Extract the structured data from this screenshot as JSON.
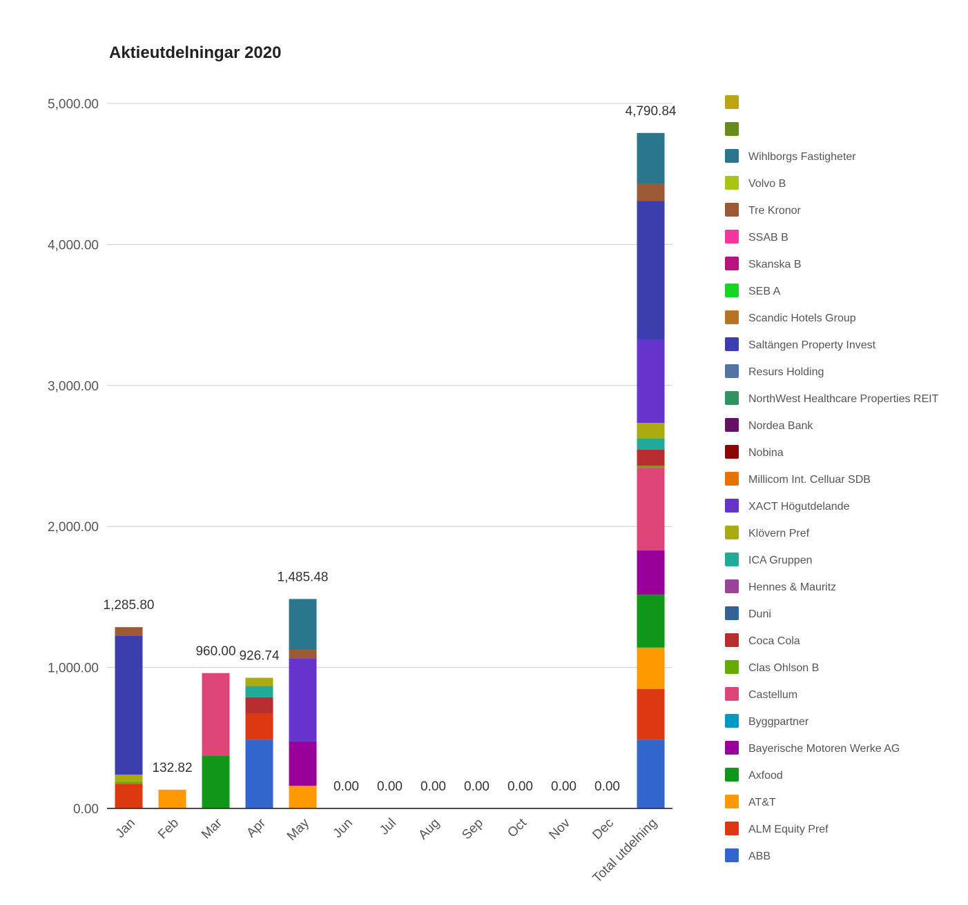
{
  "chart_data": {
    "type": "bar",
    "stacked": true,
    "title": "Aktieutdelningar 2020",
    "xlabel": "",
    "ylabel": "",
    "ylim": [
      0,
      5000
    ],
    "yticks": [
      "0.00",
      "1,000.00",
      "2,000.00",
      "3,000.00",
      "4,000.00",
      "5,000.00"
    ],
    "ytick_values": [
      0,
      1000,
      2000,
      3000,
      4000,
      5000
    ],
    "grid": true,
    "legend_position": "right",
    "categories": [
      "Jan",
      "Feb",
      "Mar",
      "Apr",
      "May",
      "Jun",
      "Jul",
      "Aug",
      "Sep",
      "Oct",
      "Nov",
      "Dec",
      "Total utdelning"
    ],
    "totals": [
      "1,285.80",
      "132.82",
      "960.00",
      "926.74",
      "1,485.48",
      "0.00",
      "0.00",
      "0.00",
      "0.00",
      "0.00",
      "0.00",
      "0.00",
      "4,790.84"
    ],
    "series": [
      {
        "name": "ABB",
        "color": "#3366cc",
        "values": [
          0,
          0,
          0,
          488,
          0,
          0,
          0,
          0,
          0,
          0,
          0,
          0,
          488
        ]
      },
      {
        "name": "ALM Equity Pref",
        "color": "#dc3912",
        "values": [
          175,
          0,
          0,
          185,
          0,
          0,
          0,
          0,
          0,
          0,
          0,
          0,
          360
        ]
      },
      {
        "name": "AT&T",
        "color": "#ff9900",
        "values": [
          0,
          132.82,
          0,
          0,
          160,
          0,
          0,
          0,
          0,
          0,
          0,
          0,
          292.82
        ]
      },
      {
        "name": "Axfood",
        "color": "#109618",
        "values": [
          0,
          0,
          375,
          0,
          0,
          0,
          0,
          0,
          0,
          0,
          0,
          0,
          375
        ]
      },
      {
        "name": "Bayerische Motoren Werke AG",
        "color": "#990099",
        "values": [
          0,
          0,
          0,
          0,
          315,
          0,
          0,
          0,
          0,
          0,
          0,
          0,
          315
        ]
      },
      {
        "name": "Byggpartner",
        "color": "#0099c6",
        "values": [
          0,
          0,
          0,
          0,
          0,
          0,
          0,
          0,
          0,
          0,
          0,
          0,
          0
        ]
      },
      {
        "name": "Castellum",
        "color": "#dd4477",
        "values": [
          0,
          0,
          585,
          0,
          0,
          0,
          0,
          0,
          0,
          0,
          0,
          0,
          585
        ]
      },
      {
        "name": "Clas Ohlson B",
        "color": "#66aa00",
        "values": [
          15,
          0,
          0,
          0,
          0,
          0,
          0,
          0,
          0,
          0,
          0,
          0,
          15
        ]
      },
      {
        "name": "Coca Cola",
        "color": "#b82e2e",
        "values": [
          0,
          0,
          0,
          115,
          0,
          0,
          0,
          0,
          0,
          0,
          0,
          0,
          115
        ]
      },
      {
        "name": "Duni",
        "color": "#316395",
        "values": [
          0,
          0,
          0,
          0,
          0,
          0,
          0,
          0,
          0,
          0,
          0,
          0,
          0
        ]
      },
      {
        "name": "Hennes & Mauritz",
        "color": "#994499",
        "values": [
          0,
          0,
          0,
          0,
          0,
          0,
          0,
          0,
          0,
          0,
          0,
          0,
          0
        ]
      },
      {
        "name": "ICA Gruppen",
        "color": "#22aa99",
        "values": [
          0,
          0,
          0,
          80,
          0,
          0,
          0,
          0,
          0,
          0,
          0,
          0,
          80
        ]
      },
      {
        "name": "Klövern Pref",
        "color": "#aaaa11",
        "values": [
          50,
          0,
          0,
          58.74,
          0,
          0,
          0,
          0,
          0,
          0,
          0,
          0,
          108.74
        ]
      },
      {
        "name": "XACT Högutdelande",
        "color": "#6633cc",
        "values": [
          0,
          0,
          0,
          0,
          590,
          0,
          0,
          0,
          0,
          0,
          0,
          0,
          590
        ]
      },
      {
        "name": "Millicom Int. Celluar SDB",
        "color": "#e67300",
        "values": [
          0,
          0,
          0,
          0,
          0,
          0,
          0,
          0,
          0,
          0,
          0,
          0,
          0
        ]
      },
      {
        "name": "Nobina",
        "color": "#8b0707",
        "values": [
          0,
          0,
          0,
          0,
          0,
          0,
          0,
          0,
          0,
          0,
          0,
          0,
          0
        ]
      },
      {
        "name": "Nordea Bank",
        "color": "#651067",
        "values": [
          0,
          0,
          0,
          0,
          0,
          0,
          0,
          0,
          0,
          0,
          0,
          0,
          0
        ]
      },
      {
        "name": "NorthWest Healthcare Properties REIT",
        "color": "#329262",
        "values": [
          0,
          0,
          0,
          0,
          0,
          0,
          0,
          0,
          0,
          0,
          0,
          0,
          0
        ]
      },
      {
        "name": "Resurs Holding",
        "color": "#5574a6",
        "values": [
          0,
          0,
          0,
          0,
          0,
          0,
          0,
          0,
          0,
          0,
          0,
          0,
          0
        ]
      },
      {
        "name": "Saltängen Property Invest",
        "color": "#3b3eac",
        "values": [
          985,
          0,
          0,
          0,
          0,
          0,
          0,
          0,
          0,
          0,
          0,
          0,
          985
        ]
      },
      {
        "name": "Scandic Hotels Group",
        "color": "#b77322",
        "values": [
          0,
          0,
          0,
          0,
          0,
          0,
          0,
          0,
          0,
          0,
          0,
          0,
          0
        ]
      },
      {
        "name": "SEB A",
        "color": "#16d620",
        "values": [
          0,
          0,
          0,
          0,
          0,
          0,
          0,
          0,
          0,
          0,
          0,
          0,
          0
        ]
      },
      {
        "name": "Skanska B",
        "color": "#b91383",
        "values": [
          0,
          0,
          0,
          0,
          0,
          0,
          0,
          0,
          0,
          0,
          0,
          0,
          0
        ]
      },
      {
        "name": "SSAB B",
        "color": "#f4359e",
        "values": [
          0,
          0,
          0,
          0,
          0,
          0,
          0,
          0,
          0,
          0,
          0,
          0,
          0
        ]
      },
      {
        "name": "Tre Kronor",
        "color": "#9c5935",
        "values": [
          60.8,
          0,
          0,
          0,
          60,
          0,
          0,
          0,
          0,
          0,
          0,
          0,
          120.8
        ]
      },
      {
        "name": "Volvo B",
        "color": "#a9c413",
        "values": [
          0,
          0,
          0,
          0,
          0,
          0,
          0,
          0,
          0,
          0,
          0,
          0,
          0
        ]
      },
      {
        "name": "Wihlborgs Fastigheter",
        "color": "#2a778d",
        "values": [
          0,
          0,
          0,
          0,
          360.48,
          0,
          0,
          0,
          0,
          0,
          0,
          0,
          360.48
        ]
      },
      {
        "name": "",
        "color": "#668d1c",
        "values": [
          0,
          0,
          0,
          0,
          0,
          0,
          0,
          0,
          0,
          0,
          0,
          0,
          0
        ]
      },
      {
        "name": "",
        "color": "#bea413",
        "values": [
          0,
          0,
          0,
          0,
          0,
          0,
          0,
          0,
          0,
          0,
          0,
          0,
          0
        ]
      }
    ]
  }
}
